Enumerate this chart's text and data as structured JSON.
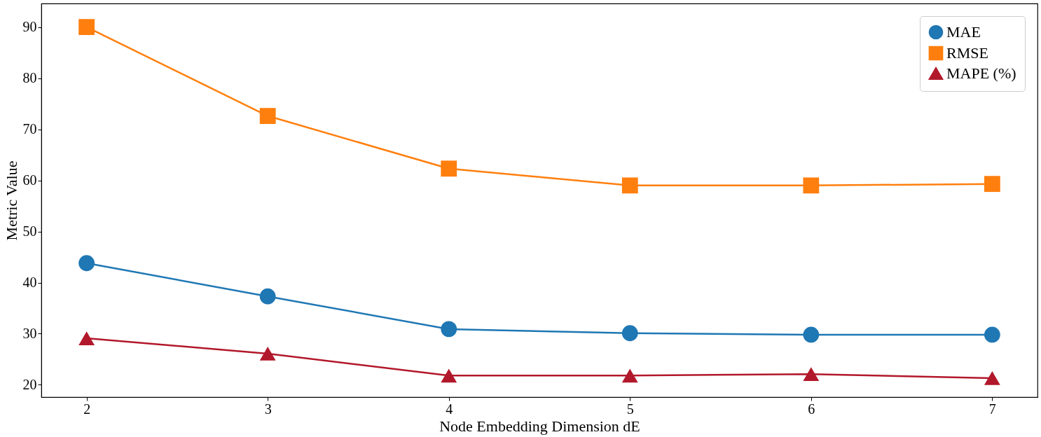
{
  "chart_data": {
    "type": "line",
    "xlabel": "Node Embedding Dimension dE",
    "ylabel": "Metric Value",
    "x": [
      2,
      3,
      4,
      5,
      6,
      7
    ],
    "series": [
      {
        "name": "MAE",
        "color": "#1f77b4",
        "marker": "circle",
        "values": [
          43.8,
          37.3,
          30.9,
          30.1,
          29.8,
          29.8
        ]
      },
      {
        "name": "RMSE",
        "color": "#ff7f0e",
        "marker": "square",
        "values": [
          90.0,
          72.6,
          62.3,
          59.0,
          59.0,
          59.3
        ]
      },
      {
        "name": "MAPE (%)",
        "color": "#b2182b",
        "marker": "triangle",
        "values": [
          29.1,
          26.1,
          21.8,
          21.8,
          22.1,
          21.3
        ]
      }
    ],
    "xlim": [
      1.75,
      7.25
    ],
    "xticks": [
      2,
      3,
      4,
      5,
      6,
      7
    ],
    "ylim": [
      17.6,
      94.6
    ],
    "yticks": [
      20,
      30,
      40,
      50,
      60,
      70,
      80,
      90
    ],
    "grid": false,
    "legend": "top right",
    "line_style": "solid"
  }
}
